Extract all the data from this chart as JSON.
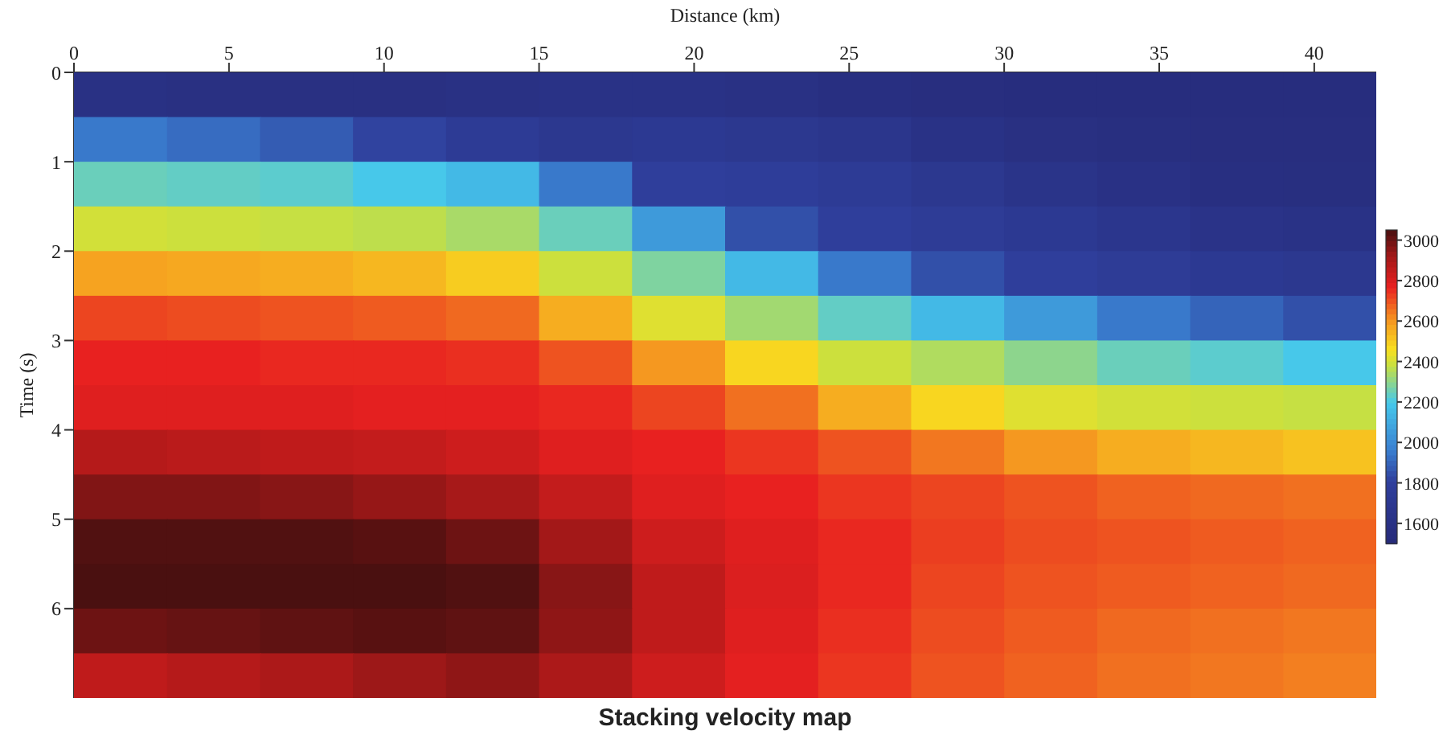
{
  "chart_data": {
    "type": "heatmap",
    "title": "Stacking velocity map",
    "xlabel": "Distance (km)",
    "ylabel": "Time (s)",
    "xlim": [
      0,
      42
    ],
    "xticks": [
      0,
      5,
      10,
      15,
      20,
      25,
      30,
      35,
      40
    ],
    "ylim": [
      7,
      0
    ],
    "yticks": [
      0,
      1,
      2,
      3,
      4,
      5,
      6
    ],
    "clim": [
      1500,
      3050
    ],
    "cticks": [
      1600,
      1800,
      2000,
      2200,
      2400,
      2600,
      2800,
      3000
    ],
    "cells": [
      [
        1600,
        1590,
        1590,
        1590,
        1600,
        1620,
        1620,
        1600,
        1580,
        1560,
        1550,
        1550,
        1550,
        1550
      ],
      [
        1950,
        1920,
        1880,
        1820,
        1750,
        1700,
        1720,
        1700,
        1670,
        1620,
        1590,
        1570,
        1560,
        1560
      ],
      [
        2250,
        2240,
        2230,
        2200,
        2150,
        1950,
        1800,
        1780,
        1750,
        1700,
        1650,
        1610,
        1580,
        1570
      ],
      [
        2400,
        2390,
        2380,
        2370,
        2340,
        2250,
        2050,
        1850,
        1800,
        1760,
        1720,
        1680,
        1640,
        1620
      ],
      [
        2580,
        2570,
        2560,
        2540,
        2500,
        2390,
        2280,
        2150,
        1950,
        1850,
        1800,
        1760,
        1720,
        1700
      ],
      [
        2720,
        2710,
        2700,
        2690,
        2670,
        2560,
        2420,
        2330,
        2240,
        2150,
        2050,
        1950,
        1900,
        1850
      ],
      [
        2770,
        2770,
        2760,
        2760,
        2750,
        2700,
        2600,
        2480,
        2390,
        2350,
        2300,
        2250,
        2230,
        2200
      ],
      [
        2790,
        2790,
        2790,
        2780,
        2780,
        2760,
        2720,
        2660,
        2560,
        2480,
        2420,
        2400,
        2390,
        2380
      ],
      [
        2880,
        2870,
        2860,
        2850,
        2830,
        2790,
        2770,
        2740,
        2700,
        2650,
        2600,
        2560,
        2540,
        2520
      ],
      [
        2970,
        2970,
        2960,
        2940,
        2910,
        2850,
        2790,
        2770,
        2740,
        2720,
        2700,
        2680,
        2670,
        2660
      ],
      [
        3040,
        3040,
        3040,
        3030,
        3000,
        2920,
        2830,
        2790,
        2760,
        2730,
        2710,
        2700,
        2690,
        2680
      ],
      [
        3050,
        3050,
        3050,
        3050,
        3040,
        2960,
        2860,
        2800,
        2760,
        2720,
        2700,
        2690,
        2680,
        2670
      ],
      [
        3000,
        3010,
        3020,
        3030,
        3020,
        2950,
        2860,
        2790,
        2750,
        2710,
        2690,
        2670,
        2660,
        2650
      ],
      [
        2860,
        2880,
        2900,
        2930,
        2950,
        2900,
        2830,
        2780,
        2740,
        2700,
        2680,
        2660,
        2650,
        2640
      ]
    ]
  }
}
